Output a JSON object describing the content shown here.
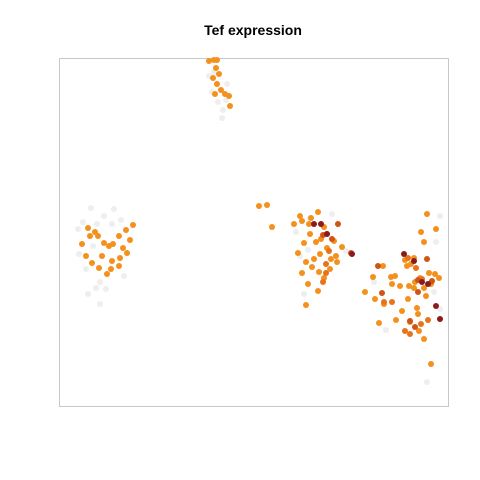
{
  "chart_data": {
    "type": "scatter",
    "title": "Tef expression",
    "xlabel": "",
    "ylabel": "",
    "axes_visible": false,
    "frame": true,
    "xlim": [
      0,
      380
    ],
    "ylim": [
      0,
      348
    ],
    "level_colors": [
      "#eeeeee",
      "#f4901c",
      "#e8731a",
      "#cf5516",
      "#8c1c1c"
    ],
    "point_order": [
      "x",
      "y",
      "level"
    ],
    "points": [
      [
        145,
        333,
        1
      ],
      [
        150,
        334,
        1
      ],
      [
        153,
        334,
        1
      ],
      [
        152,
        326,
        1
      ],
      [
        155,
        320,
        1
      ],
      [
        149,
        316,
        1
      ],
      [
        153,
        310,
        1
      ],
      [
        157,
        304,
        1
      ],
      [
        151,
        300,
        1
      ],
      [
        161,
        300,
        1
      ],
      [
        165,
        298,
        1
      ],
      [
        166,
        288,
        1
      ],
      [
        154,
        292,
        0
      ],
      [
        162,
        294,
        0
      ],
      [
        158,
        276,
        0
      ],
      [
        148,
        302,
        0
      ],
      [
        163,
        310,
        0
      ],
      [
        150,
        322,
        0
      ],
      [
        159,
        284,
        0
      ],
      [
        145,
        318,
        0
      ],
      [
        14,
        165,
        0
      ],
      [
        19,
        172,
        0
      ],
      [
        24,
        166,
        1
      ],
      [
        31,
        162,
        1
      ],
      [
        34,
        158,
        1
      ],
      [
        40,
        151,
        1
      ],
      [
        45,
        148,
        1
      ],
      [
        49,
        150,
        1
      ],
      [
        55,
        158,
        1
      ],
      [
        62,
        164,
        1
      ],
      [
        69,
        169,
        1
      ],
      [
        66,
        154,
        1
      ],
      [
        59,
        146,
        1
      ],
      [
        56,
        136,
        1
      ],
      [
        48,
        133,
        1
      ],
      [
        43,
        120,
        1
      ],
      [
        35,
        126,
        1
      ],
      [
        28,
        131,
        1
      ],
      [
        22,
        138,
        1
      ],
      [
        18,
        150,
        1
      ],
      [
        26,
        158,
        1
      ],
      [
        38,
        138,
        1
      ],
      [
        47,
        125,
        1
      ],
      [
        55,
        128,
        1
      ],
      [
        63,
        141,
        1
      ],
      [
        29,
        148,
        0
      ],
      [
        36,
        112,
        0
      ],
      [
        42,
        105,
        0
      ],
      [
        32,
        106,
        0
      ],
      [
        24,
        100,
        0
      ],
      [
        48,
        170,
        0
      ],
      [
        57,
        174,
        0
      ],
      [
        50,
        185,
        0
      ],
      [
        40,
        178,
        0
      ],
      [
        33,
        170,
        0
      ],
      [
        27,
        186,
        0
      ],
      [
        22,
        125,
        0
      ],
      [
        15,
        140,
        0
      ],
      [
        60,
        118,
        0
      ],
      [
        36,
        90,
        0
      ],
      [
        195,
        188,
        1
      ],
      [
        203,
        189,
        1
      ],
      [
        208,
        167,
        1
      ],
      [
        230,
        170,
        1
      ],
      [
        238,
        173,
        1
      ],
      [
        245,
        170,
        1
      ],
      [
        254,
        182,
        1
      ],
      [
        260,
        167,
        1
      ],
      [
        263,
        160,
        1
      ],
      [
        252,
        152,
        1
      ],
      [
        246,
        160,
        1
      ],
      [
        240,
        151,
        1
      ],
      [
        234,
        141,
        1
      ],
      [
        242,
        132,
        1
      ],
      [
        248,
        127,
        1
      ],
      [
        255,
        122,
        1
      ],
      [
        260,
        116,
        1
      ],
      [
        266,
        125,
        1
      ],
      [
        273,
        132,
        1
      ],
      [
        278,
        147,
        1
      ],
      [
        270,
        153,
        1
      ],
      [
        256,
        140,
        1
      ],
      [
        263,
        146,
        1
      ],
      [
        244,
        110,
        1
      ],
      [
        254,
        103,
        1
      ],
      [
        250,
        135,
        1
      ],
      [
        267,
        135,
        1
      ],
      [
        238,
        121,
        1
      ],
      [
        236,
        178,
        1
      ],
      [
        247,
        176,
        1
      ],
      [
        257,
        155,
        1
      ],
      [
        272,
        138,
        1
      ],
      [
        242,
        89,
        1
      ],
      [
        262,
        121,
        2
      ],
      [
        259,
        112,
        2
      ],
      [
        262,
        130,
        2
      ],
      [
        265,
        143,
        2
      ],
      [
        259,
        159,
        3
      ],
      [
        268,
        155,
        3
      ],
      [
        287,
        141,
        3
      ],
      [
        274,
        170,
        3
      ],
      [
        250,
        170,
        4
      ],
      [
        257,
        170,
        4
      ],
      [
        263,
        160,
        4
      ],
      [
        288,
        140,
        4
      ],
      [
        232,
        162,
        0
      ],
      [
        236,
        138,
        0
      ],
      [
        244,
        144,
        0
      ],
      [
        240,
        100,
        0
      ],
      [
        246,
        176,
        0
      ],
      [
        268,
        180,
        0
      ],
      [
        282,
        143,
        0
      ],
      [
        363,
        180,
        1
      ],
      [
        372,
        165,
        1
      ],
      [
        360,
        152,
        1
      ],
      [
        350,
        136,
        1
      ],
      [
        343,
        128,
        1
      ],
      [
        331,
        118,
        1
      ],
      [
        319,
        128,
        1
      ],
      [
        309,
        117,
        1
      ],
      [
        301,
        102,
        1
      ],
      [
        311,
        95,
        1
      ],
      [
        320,
        90,
        1
      ],
      [
        332,
        74,
        1
      ],
      [
        338,
        83,
        1
      ],
      [
        346,
        72,
        1
      ],
      [
        353,
        86,
        1
      ],
      [
        360,
        106,
        1
      ],
      [
        367,
        110,
        1
      ],
      [
        371,
        120,
        1
      ],
      [
        375,
        116,
        1
      ],
      [
        362,
        98,
        1
      ],
      [
        354,
        80,
        1
      ],
      [
        344,
        95,
        1
      ],
      [
        355,
        63,
        1
      ],
      [
        367,
        30,
        1
      ],
      [
        360,
        55,
        1
      ],
      [
        327,
        117,
        1
      ],
      [
        336,
        108,
        1
      ],
      [
        341,
        134,
        1
      ],
      [
        345,
        108,
        1
      ],
      [
        351,
        112,
        1
      ],
      [
        356,
        116,
        1
      ],
      [
        365,
        121,
        1
      ],
      [
        328,
        110,
        1
      ],
      [
        315,
        71,
        1
      ],
      [
        350,
        106,
        1
      ],
      [
        347,
        130,
        1
      ],
      [
        372,
        152,
        0
      ],
      [
        376,
        178,
        0
      ],
      [
        363,
        12,
        0
      ],
      [
        310,
        112,
        0
      ],
      [
        322,
        64,
        0
      ],
      [
        376,
        85,
        0
      ],
      [
        370,
        102,
        0
      ],
      [
        357,
        162,
        1
      ],
      [
        320,
        92,
        2
      ],
      [
        328,
        92,
        2
      ],
      [
        344,
        136,
        2
      ],
      [
        346,
        60,
        2
      ],
      [
        341,
        63,
        2
      ],
      [
        357,
        70,
        2
      ],
      [
        364,
        74,
        2
      ],
      [
        352,
        126,
        2
      ],
      [
        358,
        115,
        2
      ],
      [
        354,
        114,
        3
      ],
      [
        363,
        135,
        3
      ],
      [
        368,
        113,
        3
      ],
      [
        354,
        102,
        3
      ],
      [
        346,
        73,
        3
      ],
      [
        314,
        128,
        3
      ],
      [
        318,
        101,
        3
      ],
      [
        351,
        67,
        3
      ],
      [
        372,
        88,
        4
      ],
      [
        376,
        75,
        4
      ],
      [
        364,
        110,
        4
      ],
      [
        358,
        112,
        4
      ],
      [
        350,
        133,
        4
      ],
      [
        340,
        140,
        4
      ]
    ]
  }
}
